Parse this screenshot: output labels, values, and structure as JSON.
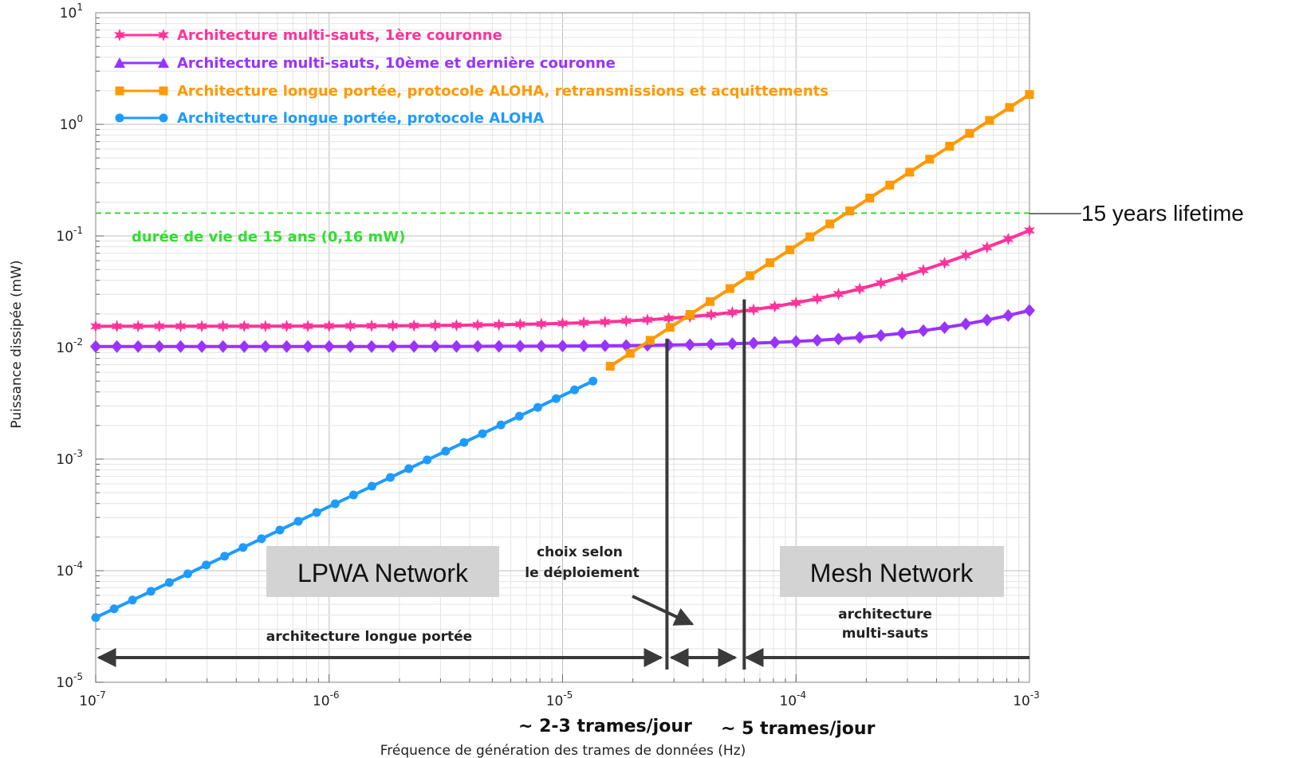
{
  "chart_data": {
    "type": "line",
    "x_scale": "log",
    "y_scale": "log",
    "xlim": [
      1e-07,
      0.001
    ],
    "ylim": [
      1e-05,
      10
    ],
    "xlabel": "Fréquence de génération des trames de données (Hz)",
    "ylabel": "Puissance dissipée (mW)",
    "x_ticks": [
      {
        "base": "10",
        "exp": "-7"
      },
      {
        "base": "10",
        "exp": "-6"
      },
      {
        "base": "10",
        "exp": "-5"
      },
      {
        "base": "10",
        "exp": "-4"
      },
      {
        "base": "10",
        "exp": "-3"
      }
    ],
    "y_ticks": [
      {
        "base": "10",
        "exp": "-5"
      },
      {
        "base": "10",
        "exp": "-4"
      },
      {
        "base": "10",
        "exp": "-3"
      },
      {
        "base": "10",
        "exp": "-2"
      },
      {
        "base": "10",
        "exp": "-1"
      },
      {
        "base": "10",
        "exp": "0"
      },
      {
        "base": "10",
        "exp": "1"
      }
    ],
    "grid": true,
    "legend_position": "top-left",
    "series": [
      {
        "name": "Architecture multi-sauts, 1ère couronne",
        "color": "#ff3399",
        "marker": "star",
        "x_start": 1e-07,
        "x_end": 0.001,
        "y_start": 0.0155,
        "y_end": 0.112,
        "model": "a_plus_bx",
        "points": 45
      },
      {
        "name": "Architecture multi-sauts, 10ème et dernière couronne",
        "color": "#9933ff",
        "marker": "diamond",
        "x_start": 1e-07,
        "x_end": 0.001,
        "y_start": 0.0102,
        "y_end": 0.0215,
        "model": "a_plus_bx",
        "points": 45
      },
      {
        "name": "Architecture longue portée, protocole ALOHA, retransmissions et acquittements",
        "color": "#ff9900",
        "marker": "square",
        "x_start": 1.6e-05,
        "x_end": 0.001,
        "y_start": 0.0068,
        "y_end": 1.85,
        "model": "power_law",
        "points": 22
      },
      {
        "name": "Architecture longue portée, protocole ALOHA",
        "color": "#1e9bff",
        "marker": "circle",
        "x_start": 1e-07,
        "x_end": 1.35e-05,
        "y_start": 3.8e-05,
        "y_end": 0.005,
        "model": "power_law",
        "points": 28
      }
    ],
    "threshold": {
      "y": 0.16,
      "label": "durée de vie de 15 ans (0,16 mW)",
      "color": "#33dd33"
    },
    "vertical_lines_x": [
      2.8e-05,
      6e-05
    ],
    "annotations": {
      "lifetime_label": "15 years lifetime",
      "lpwa_box": "LPWA Network",
      "mesh_box": "Mesh Network",
      "choix_line1": "choix selon",
      "choix_line2": "le déploiement",
      "range_long": "architecture longue portée",
      "range_multi_line1": "architecture",
      "range_multi_line2": "multi-sauts",
      "trames_1": "~ 2-3 trames/jour",
      "trames_2": "~ 5 trames/jour"
    }
  }
}
